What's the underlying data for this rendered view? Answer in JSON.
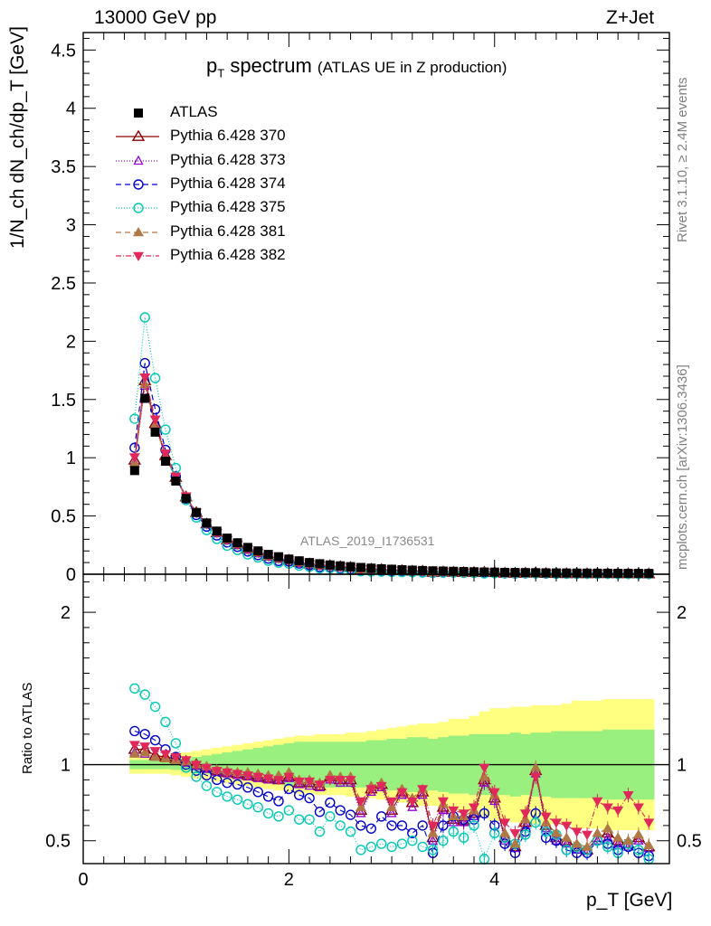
{
  "header": {
    "left": "13000 GeV pp",
    "right": "Z+Jet"
  },
  "title": {
    "main": "p",
    "sub": "T",
    "rest": " spectrum",
    "note": "(ATLAS UE in Z production)"
  },
  "side_labels": {
    "rivet": "Rivet 3.1.10, ≥ 2.4M events",
    "mcplots": "mcplots.cern.ch [arXiv:1306.3436]"
  },
  "analysis_id": "ATLAS_2019_I1736531",
  "ylabel_main": "1/N_ch dN_ch/dp_T [GeV]",
  "ylabel_ratio": "Ratio to ATLAS",
  "xlabel": "p_T [GeV]",
  "legend": [
    {
      "key": "data",
      "label": "ATLAS",
      "color": "#000000",
      "marker": "square-filled"
    },
    {
      "key": "s370",
      "label": "Pythia 6.428 370",
      "color": "#8b0000",
      "marker": "triangle-up-open",
      "dash": ""
    },
    {
      "key": "s373",
      "label": "Pythia 6.428 373",
      "color": "#9400d3",
      "marker": "triangle-up-open-small",
      "dash": "1,2"
    },
    {
      "key": "s374",
      "label": "Pythia 6.428 374",
      "color": "#0000cd",
      "marker": "circle-open",
      "dash": "6,4"
    },
    {
      "key": "s375",
      "label": "Pythia 6.428 375",
      "color": "#00c8b4",
      "marker": "circle-open",
      "dash": "1,2"
    },
    {
      "key": "s381",
      "label": "Pythia 6.428 381",
      "color": "#b07845",
      "marker": "triangle-up-filled",
      "dash": "6,4"
    },
    {
      "key": "s382",
      "label": "Pythia 6.428 382",
      "color": "#e0285a",
      "marker": "triangle-down-filled",
      "dash": "6,2,1,2"
    }
  ],
  "chart_data": {
    "type": "scatter",
    "xlim": [
      0,
      5.7
    ],
    "ylim_main": [
      0,
      4.65
    ],
    "ylim_ratio": [
      0.35,
      2.25
    ],
    "x_ticks": [
      "0",
      "2",
      "4"
    ],
    "y_ticks_main": [
      "0",
      "0.5",
      "1",
      "1.5",
      "2",
      "2.5",
      "3",
      "3.5",
      "4",
      "4.5"
    ],
    "y_ticks_ratio": [
      "0.5",
      "1",
      "2"
    ],
    "x": [
      0.5,
      0.6,
      0.7,
      0.8,
      0.9,
      1.0,
      1.1,
      1.2,
      1.3,
      1.4,
      1.5,
      1.6,
      1.7,
      1.8,
      1.9,
      2.0,
      2.1,
      2.2,
      2.3,
      2.4,
      2.5,
      2.6,
      2.7,
      2.8,
      2.9,
      3.0,
      3.1,
      3.2,
      3.3,
      3.4,
      3.5,
      3.6,
      3.7,
      3.8,
      3.9,
      4.0,
      4.1,
      4.2,
      4.3,
      4.4,
      4.5,
      4.6,
      4.7,
      4.8,
      4.9,
      5.0,
      5.1,
      5.2,
      5.3,
      5.4,
      5.5
    ],
    "data_values": [
      0.89,
      1.51,
      1.22,
      0.97,
      0.8,
      0.65,
      0.53,
      0.44,
      0.37,
      0.31,
      0.27,
      0.23,
      0.2,
      0.17,
      0.15,
      0.13,
      0.115,
      0.1,
      0.09,
      0.08,
      0.072,
      0.065,
      0.058,
      0.052,
      0.047,
      0.043,
      0.039,
      0.035,
      0.032,
      0.029,
      0.027,
      0.025,
      0.023,
      0.021,
      0.019,
      0.018,
      0.016,
      0.015,
      0.014,
      0.013,
      0.012,
      0.011,
      0.0105,
      0.01,
      0.0095,
      0.009,
      0.0085,
      0.008,
      0.0075,
      0.007,
      0.0065
    ],
    "band_inner_halfwidth": [
      0.03,
      0.03,
      0.03,
      0.03,
      0.035,
      0.04,
      0.05,
      0.06,
      0.07,
      0.08,
      0.09,
      0.1,
      0.11,
      0.12,
      0.13,
      0.14,
      0.15,
      0.15,
      0.15,
      0.15,
      0.15,
      0.15,
      0.15,
      0.16,
      0.16,
      0.17,
      0.17,
      0.18,
      0.18,
      0.17,
      0.18,
      0.19,
      0.19,
      0.2,
      0.2,
      0.2,
      0.2,
      0.21,
      0.2,
      0.21,
      0.21,
      0.22,
      0.22,
      0.22,
      0.22,
      0.22,
      0.23,
      0.23,
      0.23,
      0.23,
      0.23
    ],
    "band_outer_halfwidth": [
      0.06,
      0.06,
      0.06,
      0.06,
      0.07,
      0.08,
      0.09,
      0.1,
      0.11,
      0.12,
      0.13,
      0.14,
      0.15,
      0.16,
      0.17,
      0.18,
      0.19,
      0.19,
      0.2,
      0.2,
      0.2,
      0.21,
      0.21,
      0.22,
      0.23,
      0.24,
      0.25,
      0.26,
      0.27,
      0.27,
      0.28,
      0.3,
      0.3,
      0.32,
      0.35,
      0.37,
      0.37,
      0.38,
      0.38,
      0.39,
      0.39,
      0.39,
      0.4,
      0.42,
      0.42,
      0.42,
      0.43,
      0.43,
      0.43,
      0.43,
      0.43
    ],
    "series": [
      {
        "key": "s370",
        "name": "Pythia 6.428 370",
        "ratio": [
          1.1,
          1.1,
          1.06,
          1.05,
          1.04,
          1.02,
          1.0,
          0.98,
          0.96,
          0.95,
          0.94,
          0.93,
          0.92,
          0.91,
          0.9,
          0.92,
          0.88,
          0.88,
          0.86,
          0.92,
          0.9,
          0.9,
          0.7,
          0.84,
          0.87,
          0.7,
          0.82,
          0.75,
          0.82,
          0.52,
          0.72,
          0.64,
          0.63,
          0.68,
          0.9,
          0.78,
          0.52,
          0.46,
          0.62,
          0.96,
          0.6,
          0.52,
          0.5,
          0.46,
          0.44,
          0.52,
          0.55,
          0.5,
          0.48,
          0.52,
          0.46
        ]
      },
      {
        "key": "s373",
        "name": "Pythia 6.428 373",
        "ratio": [
          1.08,
          1.07,
          1.05,
          1.04,
          1.03,
          1.01,
          0.99,
          0.97,
          0.95,
          0.94,
          0.93,
          0.92,
          0.91,
          0.9,
          0.9,
          0.91,
          0.87,
          0.86,
          0.85,
          0.9,
          0.88,
          0.88,
          0.68,
          0.82,
          0.85,
          0.68,
          0.8,
          0.72,
          0.8,
          0.5,
          0.7,
          0.62,
          0.62,
          0.66,
          0.88,
          0.76,
          0.5,
          0.45,
          0.6,
          0.94,
          0.58,
          0.5,
          0.48,
          0.44,
          0.43,
          0.5,
          0.52,
          0.48,
          0.46,
          0.5,
          0.45
        ]
      },
      {
        "key": "s374",
        "name": "Pythia 6.428 374",
        "ratio": [
          1.22,
          1.2,
          1.16,
          1.1,
          1.05,
          1.0,
          0.96,
          0.93,
          0.9,
          0.88,
          0.87,
          0.85,
          0.82,
          0.79,
          0.76,
          0.84,
          0.8,
          0.78,
          0.69,
          0.75,
          0.7,
          0.67,
          0.6,
          0.58,
          0.66,
          0.6,
          0.6,
          0.55,
          0.6,
          0.42,
          0.6,
          0.66,
          0.64,
          0.64,
          0.68,
          0.6,
          0.48,
          0.42,
          0.56,
          0.68,
          0.52,
          0.5,
          0.44,
          0.42,
          0.42,
          0.5,
          0.48,
          0.44,
          0.46,
          0.42,
          0.4
        ]
      },
      {
        "key": "s375",
        "name": "Pythia 6.428 375",
        "ratio": [
          1.5,
          1.46,
          1.38,
          1.28,
          1.14,
          0.98,
          0.92,
          0.86,
          0.82,
          0.79,
          0.77,
          0.74,
          0.72,
          0.68,
          0.66,
          0.7,
          0.64,
          0.64,
          0.56,
          0.66,
          0.6,
          0.56,
          0.44,
          0.46,
          0.48,
          0.46,
          0.48,
          0.5,
          0.46,
          0.44,
          0.5,
          0.56,
          0.52,
          0.6,
          0.38,
          0.55,
          0.52,
          0.48,
          0.54,
          0.62,
          0.56,
          0.54,
          0.44,
          0.46,
          0.44,
          0.5,
          0.46,
          0.42,
          0.48,
          0.44,
          0.38
        ]
      },
      {
        "key": "s381",
        "name": "Pythia 6.428 381",
        "ratio": [
          1.07,
          1.08,
          1.05,
          1.04,
          1.03,
          1.02,
          1.0,
          0.99,
          0.97,
          0.96,
          0.95,
          0.95,
          0.94,
          0.93,
          0.93,
          0.95,
          0.9,
          0.9,
          0.88,
          0.93,
          0.92,
          0.92,
          0.72,
          0.86,
          0.88,
          0.72,
          0.84,
          0.78,
          0.84,
          0.55,
          0.74,
          0.66,
          0.66,
          0.7,
          0.92,
          0.8,
          0.55,
          0.48,
          0.64,
          0.98,
          0.62,
          0.55,
          0.52,
          0.48,
          0.46,
          0.55,
          0.58,
          0.52,
          0.5,
          0.54,
          0.47
        ]
      },
      {
        "key": "s382",
        "name": "Pythia 6.428 382",
        "ratio": [
          1.13,
          1.12,
          1.09,
          1.07,
          1.05,
          1.03,
          1.0,
          0.98,
          0.96,
          0.95,
          0.94,
          0.93,
          0.92,
          0.91,
          0.9,
          0.92,
          0.89,
          0.89,
          0.87,
          0.9,
          0.9,
          0.9,
          0.76,
          0.84,
          0.86,
          0.76,
          0.82,
          0.76,
          0.84,
          0.6,
          0.76,
          0.7,
          0.68,
          0.72,
          0.98,
          0.82,
          0.62,
          0.55,
          0.68,
          0.92,
          0.66,
          0.62,
          0.6,
          0.56,
          0.54,
          0.76,
          0.72,
          0.7,
          0.8,
          0.72,
          0.62
        ]
      }
    ]
  }
}
